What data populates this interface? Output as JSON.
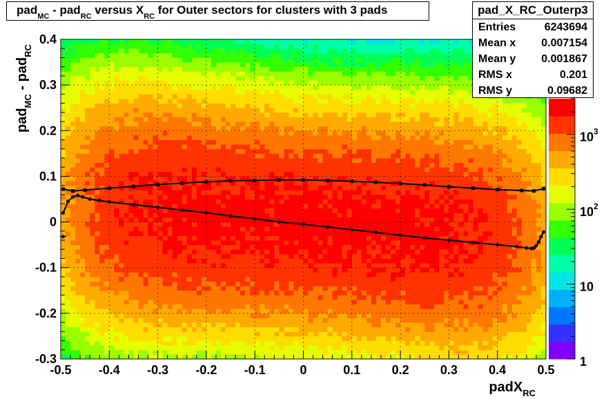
{
  "chart_data": {
    "type": "heatmap",
    "title": {
      "t1": "pad",
      "s1": "MC",
      "t2": " - pad",
      "s2": "RC",
      "t3": " versus X",
      "s3": "RC",
      "t4": " for Outer sectors for clusters with 3 pads"
    },
    "xlabel": {
      "main": "padX",
      "sub": "RC"
    },
    "ylabel": {
      "main": "pad",
      "sub1": "MC",
      "mid": " - pad",
      "sub2": "RC"
    },
    "xlim": [
      -0.5,
      0.5
    ],
    "ylim": [
      -0.3,
      0.4
    ],
    "x_ticks": [
      "-0.5",
      "-0.4",
      "-0.3",
      "-0.2",
      "-0.1",
      "0",
      "0.1",
      "0.2",
      "0.3",
      "0.4",
      "0.5"
    ],
    "x_tick_values": [
      -0.5,
      -0.4,
      -0.3,
      -0.2,
      -0.1,
      0,
      0.1,
      0.2,
      0.3,
      0.4,
      0.5
    ],
    "y_ticks": [
      "-0.3",
      "-0.2",
      "-0.1",
      "0",
      "0.1",
      "0.2",
      "0.3",
      "0.4"
    ],
    "y_tick_values": [
      -0.3,
      -0.2,
      -0.1,
      0,
      0.1,
      0.2,
      0.3,
      0.4
    ],
    "grid": true,
    "z_scale": "log",
    "zlim": [
      1,
      3000
    ],
    "colorbar_labels": [
      {
        "base": "1",
        "exp": "",
        "value": 1
      },
      {
        "base": "10",
        "exp": "",
        "value": 10
      },
      {
        "base": "10",
        "exp": "2",
        "value": 100
      },
      {
        "base": "10",
        "exp": "3",
        "value": 1000
      }
    ],
    "palette": [
      "#8000ff",
      "#3333ff",
      "#0077ff",
      "#00b0ff",
      "#00e5e5",
      "#00ffaa",
      "#00ff55",
      "#33ff00",
      "#99ff00",
      "#e6ff00",
      "#ffdd00",
      "#ffaa00",
      "#ff7700",
      "#ff3300",
      "#ff0000"
    ],
    "series": [
      {
        "kind": "mean",
        "x": [
          -0.495,
          -0.485,
          -0.475,
          -0.465,
          -0.455,
          -0.44,
          -0.42,
          -0.4,
          -0.35,
          -0.3,
          -0.25,
          -0.2,
          -0.15,
          -0.1,
          -0.05,
          0,
          0.05,
          0.1,
          0.15,
          0.2,
          0.25,
          0.3,
          0.35,
          0.4,
          0.44,
          0.46,
          0.47,
          0.475,
          0.48,
          0.485,
          0.49,
          0.495
        ],
        "y": [
          0.02,
          0.045,
          0.055,
          0.058,
          0.055,
          0.05,
          0.047,
          0.044,
          0.038,
          0.032,
          0.026,
          0.02,
          0.013,
          0.007,
          0.0,
          -0.005,
          -0.011,
          -0.017,
          -0.023,
          -0.029,
          -0.035,
          -0.04,
          -0.045,
          -0.05,
          -0.054,
          -0.057,
          -0.058,
          -0.057,
          -0.052,
          -0.044,
          -0.032,
          -0.022
        ]
      },
      {
        "kind": "rms",
        "x": [
          -0.495,
          -0.475,
          -0.45,
          -0.4,
          -0.35,
          -0.3,
          -0.25,
          -0.2,
          -0.15,
          -0.1,
          -0.05,
          0,
          0.05,
          0.1,
          0.15,
          0.2,
          0.25,
          0.3,
          0.35,
          0.4,
          0.45,
          0.475,
          0.495
        ],
        "y": [
          0.072,
          0.068,
          0.07,
          0.074,
          0.078,
          0.082,
          0.085,
          0.088,
          0.09,
          0.091,
          0.092,
          0.092,
          0.091,
          0.089,
          0.087,
          0.084,
          0.081,
          0.077,
          0.074,
          0.071,
          0.069,
          0.068,
          0.073
        ]
      }
    ],
    "outliers": [
      {
        "x": -0.495,
        "y": -0.032
      }
    ]
  },
  "stats": {
    "name": "pad_X_RC_Outerp3",
    "rows": [
      {
        "label": "Entries",
        "value": "6243694"
      },
      {
        "label": "Mean x",
        "value": "0.007154"
      },
      {
        "label": "Mean y",
        "value": "0.001867"
      },
      {
        "label": "RMS x",
        "value": "0.201"
      },
      {
        "label": "RMS y",
        "value": "0.09682"
      }
    ]
  }
}
